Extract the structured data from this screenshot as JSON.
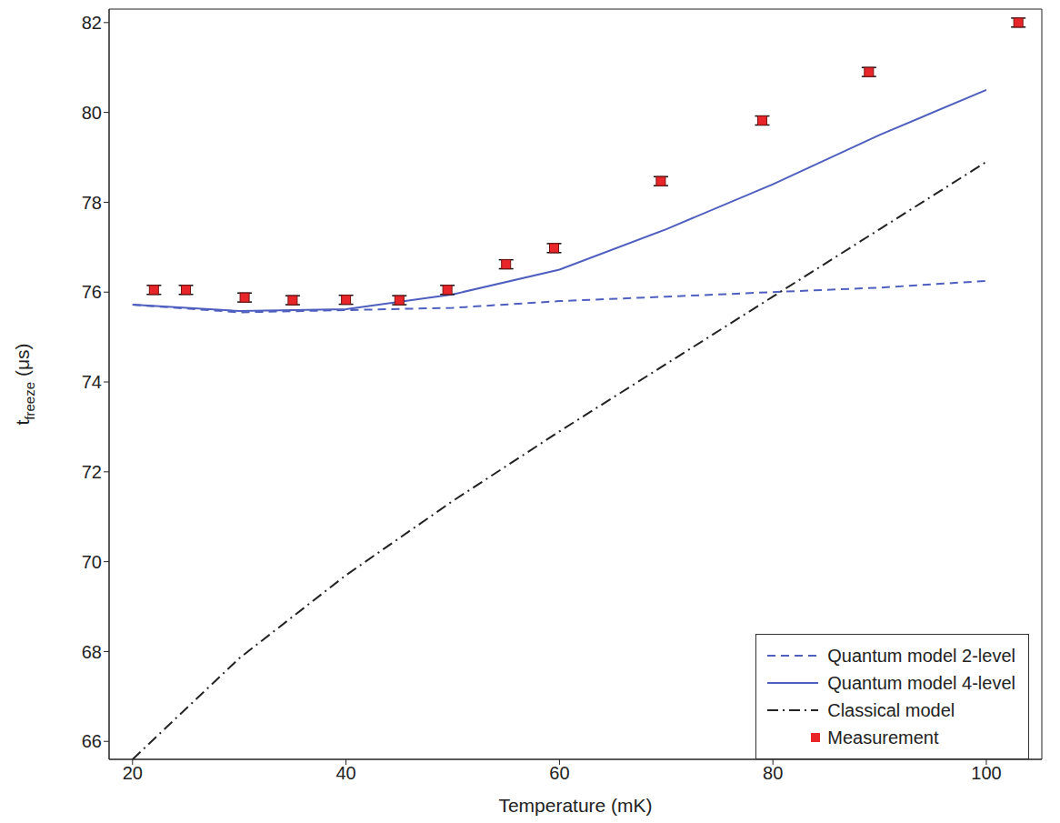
{
  "chart_data": {
    "type": "line",
    "xlabel": "Temperature (mK)",
    "ylabel": "tfreeze (μs)",
    "xlim": [
      17.8,
      105.2
    ],
    "ylim": [
      65.6,
      82.3
    ],
    "xticks": [
      20,
      40,
      60,
      80,
      100
    ],
    "yticks": [
      66,
      68,
      70,
      72,
      74,
      76,
      78,
      80,
      82
    ],
    "grid": false,
    "legend": "lower right",
    "series": [
      {
        "name": "Quantum model 2-level",
        "type": "line",
        "color": "#4f5fbf",
        "line_style": "dashed",
        "x": [
          20,
          30,
          40,
          50,
          60,
          70,
          80,
          90,
          100
        ],
        "values": [
          75.72,
          75.55,
          75.6,
          75.65,
          75.8,
          75.9,
          76.0,
          76.1,
          76.25
        ]
      },
      {
        "name": "Quantum model 4-level",
        "type": "line",
        "color": "#4f5fbf",
        "line_style": "solid",
        "x": [
          20,
          30,
          40,
          50,
          60,
          70,
          80,
          90,
          100
        ],
        "values": [
          75.72,
          75.58,
          75.62,
          75.95,
          76.5,
          77.4,
          78.4,
          79.5,
          80.5
        ]
      },
      {
        "name": "Classical model",
        "type": "line",
        "color": "#222222",
        "line_style": "dashdot",
        "x": [
          20,
          30,
          40,
          50,
          60,
          70,
          80,
          90,
          100
        ],
        "values": [
          65.6,
          67.85,
          69.7,
          71.35,
          72.9,
          74.4,
          75.9,
          77.4,
          78.9
        ]
      },
      {
        "name": "Measurement",
        "type": "scatter",
        "color": "#e8262a",
        "marker": "square",
        "x": [
          22,
          25,
          30.5,
          35,
          40,
          45,
          49.5,
          55,
          59.5,
          69.5,
          79,
          89,
          103
        ],
        "values": [
          76.05,
          76.05,
          75.88,
          75.82,
          75.83,
          75.82,
          76.05,
          76.62,
          76.98,
          78.47,
          79.82,
          80.9,
          82.0
        ],
        "error": [
          0.1,
          0.1,
          0.1,
          0.1,
          0.1,
          0.1,
          0.1,
          0.1,
          0.1,
          0.1,
          0.1,
          0.1,
          0.1
        ]
      }
    ]
  }
}
